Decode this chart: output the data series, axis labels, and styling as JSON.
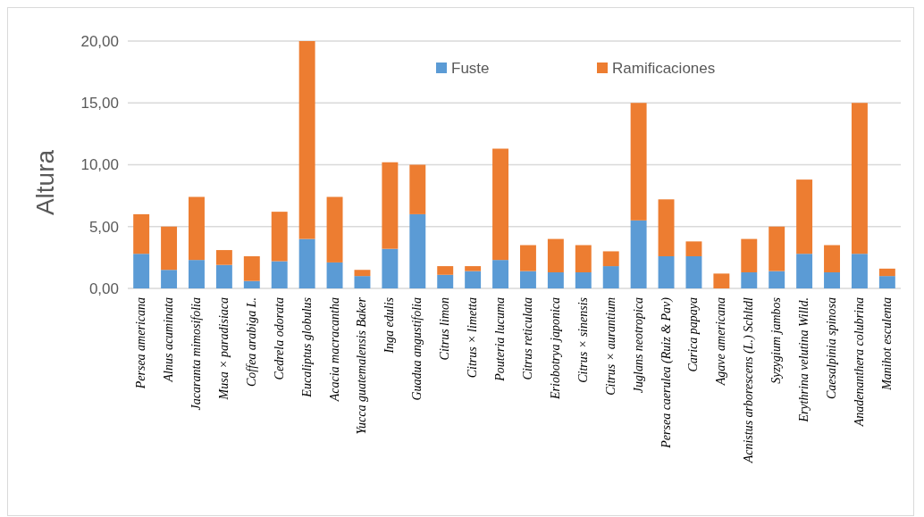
{
  "chart_data": {
    "type": "bar",
    "stacked": true,
    "ylabel": "Altura",
    "ylim": [
      0,
      20
    ],
    "yticks": [
      {
        "value": 0,
        "label": "0,00"
      },
      {
        "value": 5,
        "label": "5,00"
      },
      {
        "value": 10,
        "label": "10,00"
      },
      {
        "value": 15,
        "label": "15,00"
      },
      {
        "value": 20,
        "label": "20,00"
      }
    ],
    "grid": "y",
    "legend": "top",
    "categories": [
      "Persea americana",
      "Alnus acuminata",
      "Jacaranta mimosifolia",
      "Musa × paradisiaca",
      "Coffea arabiga L.",
      "Cedrela odorata",
      "Eucaliptus globulus",
      "Acacia macracantha",
      "Yucca guatemalensis Baker",
      "Inga edulis",
      "Guadua angustifolia",
      "Citrus limon",
      "Citrus × limetta",
      "Pouteria lucuma",
      "Citrus reticulata",
      "Eriobotrya japonica",
      "Citrus × sinensis",
      "Citrus × aurantium",
      "Juglans neotropica",
      "Persea caerulea (Ruiz & Pav)",
      "Carica papaya",
      "Agave americana",
      "Acnistus arborescens (L.) Schltdl",
      "Syzygium jambos",
      "Erythrina velutina Willd.",
      "Caesalpinia spinosa",
      "Anadenanthera colubrina",
      "Manihot esculenta"
    ],
    "series": [
      {
        "name": "Fuste",
        "color": "#5b9bd5",
        "values": [
          2.8,
          1.5,
          2.3,
          1.9,
          0.6,
          2.2,
          4.0,
          2.1,
          1.0,
          3.2,
          6.0,
          1.1,
          1.4,
          2.3,
          1.4,
          1.3,
          1.3,
          1.8,
          5.5,
          2.6,
          2.6,
          0,
          1.3,
          1.4,
          2.8,
          1.3,
          2.8,
          1.0
        ]
      },
      {
        "name": "Ramificaciones",
        "color": "#ed7d31",
        "values": [
          3.2,
          3.5,
          5.1,
          1.2,
          2.0,
          4.0,
          16.0,
          5.3,
          0.5,
          7.0,
          4.0,
          0.7,
          0.4,
          9.0,
          2.1,
          2.7,
          2.2,
          1.2,
          9.5,
          4.6,
          1.2,
          1.2,
          2.7,
          3.6,
          6.0,
          2.2,
          12.2,
          0.6
        ]
      }
    ]
  }
}
